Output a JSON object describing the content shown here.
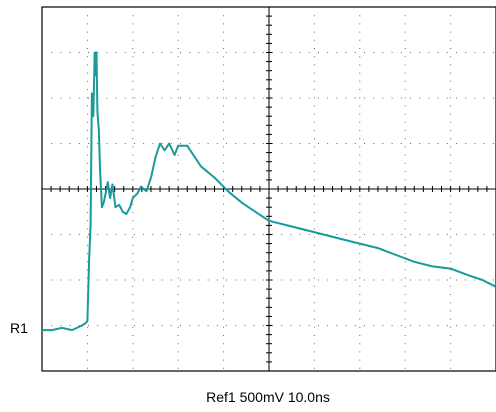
{
  "ref_marker": "R1",
  "status_line": "Ref1 500mV  10.0ns",
  "trace": {
    "color": "#1a9a9a",
    "settings": {
      "channel": "Ref1",
      "volts_per_div": "500mV",
      "time_per_div": "10.0ns"
    }
  },
  "chart_data": {
    "type": "line",
    "title": "",
    "xlabel": "",
    "ylabel": "",
    "grid": true,
    "x_divisions": 10,
    "y_divisions": 8,
    "xlim": [
      0,
      10
    ],
    "ylim": [
      -4,
      4
    ],
    "series": [
      {
        "values_note_omitted": null,
        "x": [
          0.0,
          0.22,
          0.44,
          0.66,
          0.88,
          0.96,
          1.0,
          1.04,
          1.07,
          1.1,
          1.13,
          1.16,
          1.18,
          1.2,
          1.22,
          1.25,
          1.28,
          1.32,
          1.36,
          1.4,
          1.45,
          1.5,
          1.55,
          1.62,
          1.7,
          1.78,
          1.86,
          1.94,
          2.0,
          2.1,
          2.18,
          2.24,
          2.3,
          2.4,
          2.5,
          2.6,
          2.7,
          2.8,
          2.92,
          3.0,
          3.2,
          3.5,
          3.8,
          4.1,
          4.4,
          4.7,
          5.0,
          5.4,
          5.8,
          6.2,
          6.6,
          7.0,
          7.4,
          7.8,
          8.2,
          8.6,
          9.0,
          9.4,
          9.7,
          10.0
        ],
        "y": [
          -3.1,
          -3.1,
          -3.05,
          -3.1,
          -3.0,
          -2.95,
          -2.9,
          -1.5,
          -0.8,
          2.1,
          1.6,
          3.0,
          2.5,
          3.0,
          1.7,
          1.3,
          0.4,
          -0.4,
          -0.3,
          -0.1,
          0.15,
          -0.2,
          0.1,
          -0.4,
          -0.35,
          -0.5,
          -0.55,
          -0.4,
          -0.2,
          -0.1,
          0.05,
          0.0,
          -0.05,
          0.25,
          0.7,
          1.0,
          0.85,
          1.0,
          0.75,
          0.95,
          0.95,
          0.5,
          0.25,
          -0.05,
          -0.3,
          -0.5,
          -0.7,
          -0.8,
          -0.9,
          -1.0,
          -1.1,
          -1.2,
          -1.3,
          -1.45,
          -1.6,
          -1.7,
          -1.75,
          -1.9,
          -2.0,
          -2.15
        ]
      }
    ]
  }
}
